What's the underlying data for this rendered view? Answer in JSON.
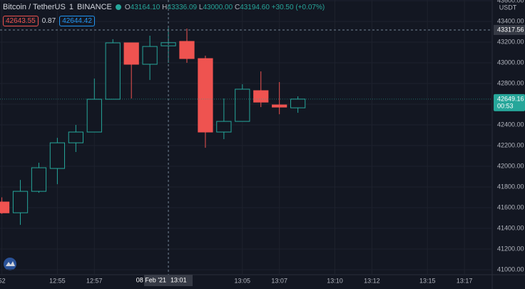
{
  "chart_data": {
    "type": "candlestick",
    "title": "Bitcoin / TetherUS",
    "interval": "1",
    "exchange": "BINANCE",
    "header": {
      "o": "O",
      "open": "43164.10",
      "h": "H",
      "high": "43336.09",
      "l": "L",
      "low": "43000.00",
      "c": "C",
      "close": "43194.60",
      "change": "+30.50",
      "change_pct": "(+0.07%)"
    },
    "quote": {
      "bid": "42643.55",
      "spread": "0.87",
      "ask": "42644.42"
    },
    "currency": "USDT",
    "countdown": "00:53",
    "up_color": "#26a69a",
    "down_color": "#ef5350",
    "x": [
      772,
      773,
      774,
      775,
      776,
      777,
      778,
      779,
      780,
      781,
      782,
      783,
      784,
      785,
      786,
      787,
      788
    ],
    "open": [
      41655,
      41551,
      41758,
      41979,
      42227,
      42331,
      42648,
      43193,
      42986,
      43164.1,
      43207,
      43041,
      42331,
      42434,
      42731,
      42593,
      42565
    ],
    "high": [
      41700,
      41868,
      42034,
      42275,
      42400,
      42848,
      43228,
      43193,
      43262,
      43336.09,
      43331,
      43069,
      42655,
      42793,
      42917,
      42814,
      42676
    ],
    "low": [
      41540,
      41434,
      41744,
      41827,
      42138,
      42331,
      42648,
      42655,
      42834,
      43000.0,
      43000,
      42179,
      42262,
      42434,
      42572,
      42503,
      42517
    ],
    "close": [
      41550,
      41758,
      41986,
      42227,
      42331,
      42648,
      43193,
      42986,
      43158,
      43194.6,
      43041,
      42331,
      42434,
      42745,
      42620,
      42572,
      42649.16
    ],
    "xlim": [
      771.9,
      798.5
    ],
    "xticks": [
      {
        "value": 772,
        "label": "52"
      },
      {
        "value": 775,
        "label": "12:55"
      },
      {
        "value": 777,
        "label": "12:57"
      },
      {
        "value": 785,
        "label": "13:05"
      },
      {
        "value": 787,
        "label": "13:07"
      },
      {
        "value": 790,
        "label": "13:10"
      },
      {
        "value": 792,
        "label": "13:12"
      },
      {
        "value": 795,
        "label": "13:15"
      },
      {
        "value": 797,
        "label": "13:17"
      }
    ],
    "ylim": [
      40952,
      43607
    ],
    "yticks": [
      {
        "value": 41000,
        "label": "41000.00"
      },
      {
        "value": 41200,
        "label": "41200.00"
      },
      {
        "value": 41400,
        "label": "41400.00"
      },
      {
        "value": 41600,
        "label": "41600.00"
      },
      {
        "value": 41800,
        "label": "41800.00"
      },
      {
        "value": 42000,
        "label": "42000.00"
      },
      {
        "value": 42200,
        "label": "42200.00"
      },
      {
        "value": 42400,
        "label": "42400.00"
      },
      {
        "value": 42600,
        "label": "42600.00"
      },
      {
        "value": 42800,
        "label": "42800.00"
      },
      {
        "value": 43000,
        "label": "43000.00"
      },
      {
        "value": 43200,
        "label": "43200.00"
      },
      {
        "value": 43400,
        "label": "43400.00"
      },
      {
        "value": 43600,
        "label": "43600.00"
      }
    ],
    "grid": true,
    "crosshair": {
      "x": 781,
      "date": "08 Feb '21",
      "time": "13:01",
      "price": 43317.56
    }
  }
}
